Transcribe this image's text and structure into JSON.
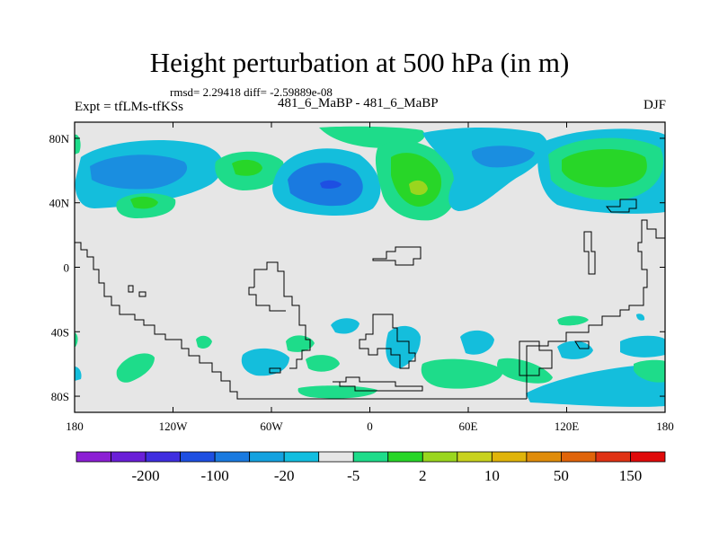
{
  "chart_data": {
    "type": "heatmap",
    "title": "Height perturbation at 500 hPa (in m)",
    "stats_line": "rmsd= 2.29418 diff= -2.59889e-08",
    "left_label": "Expt = tfLMs-tfKSs",
    "center_label": "481_6_MaBP - 481_6_MaBP",
    "right_label": "DJF",
    "x_ticks": [
      "180",
      "120W",
      "60W",
      "0",
      "60E",
      "120E",
      "180"
    ],
    "y_ticks": [
      "80N",
      "40N",
      "0",
      "40S",
      "80S"
    ],
    "x_range": [
      -180,
      180
    ],
    "y_range": [
      -90,
      90
    ],
    "colorbar": {
      "labels": [
        "-200",
        "-100",
        "-20",
        "-5",
        "2",
        "10",
        "50",
        "150"
      ],
      "colors": [
        "#8c1fd4",
        "#6a1fd8",
        "#3f2ee0",
        "#1e4fe2",
        "#1a7ae0",
        "#14a2e0",
        "#12bee0",
        "#e6e6e6",
        "#1edc8a",
        "#28d628",
        "#9ad61e",
        "#c8d21e",
        "#e0b40a",
        "#e08c0a",
        "#e0640a",
        "#e03214",
        "#e00a0a"
      ]
    },
    "fields": [
      {
        "lon": -138,
        "lat": 58,
        "value": -5,
        "cat": "cyan"
      },
      {
        "lon": -125,
        "lat": 60,
        "value": -8,
        "cat": "cyan2"
      },
      {
        "lon": -85,
        "lat": 60,
        "value": 4,
        "cat": "green"
      },
      {
        "lon": -22,
        "lat": 48,
        "value": -12,
        "cat": "blue"
      },
      {
        "lon": 33,
        "lat": 48,
        "value": 12,
        "cat": "lime"
      },
      {
        "lon": 78,
        "lat": 62,
        "value": -8,
        "cat": "cyan2"
      },
      {
        "lon": 135,
        "lat": 57,
        "value": 8,
        "cat": "lime"
      },
      {
        "lon": -122,
        "lat": 38,
        "value": 6,
        "cat": "green"
      },
      {
        "lon": -170,
        "lat": 85,
        "value": 3,
        "cat": "green"
      },
      {
        "lon": -25,
        "lat": -35,
        "value": -4,
        "cat": "cyan"
      },
      {
        "lon": 40,
        "lat": -40,
        "value": -4,
        "cat": "cyan"
      },
      {
        "lon": -62,
        "lat": -58,
        "value": -5,
        "cat": "cyan"
      },
      {
        "lon": 25,
        "lat": -62,
        "value": 3,
        "cat": "green"
      },
      {
        "lon": 140,
        "lat": -62,
        "value": -5,
        "cat": "cyan"
      },
      {
        "lon": 110,
        "lat": -80,
        "value": -6,
        "cat": "cyan"
      },
      {
        "lon": -140,
        "lat": -60,
        "value": 3,
        "cat": "green"
      }
    ]
  }
}
